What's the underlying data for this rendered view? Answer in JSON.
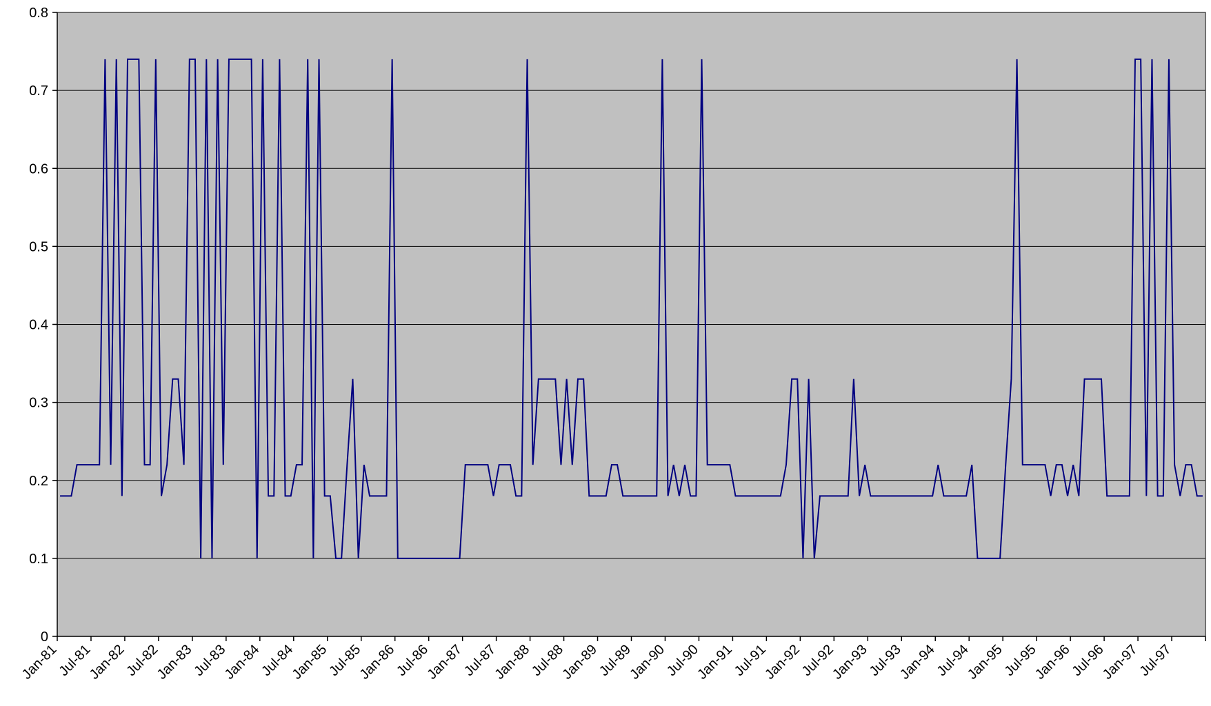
{
  "chart_data": {
    "type": "line",
    "title": "",
    "xlabel": "",
    "ylabel": "",
    "ylim": [
      0,
      0.8
    ],
    "yticks": [
      "0",
      "0.1",
      "0.2",
      "0.3",
      "0.4",
      "0.5",
      "0.6",
      "0.7",
      "0.8"
    ],
    "x_tick_labels": [
      "Jan-81",
      "Jul-81",
      "Jan-82",
      "Jul-82",
      "Jan-83",
      "Jul-83",
      "Jan-84",
      "Jul-84",
      "Jan-85",
      "Jul-85",
      "Jan-86",
      "Jul-86",
      "Jan-87",
      "Jul-87",
      "Jan-88",
      "Jul-88",
      "Jan-89",
      "Jul-89",
      "Jan-90",
      "Jul-90",
      "Jan-91",
      "Jul-91",
      "Jan-92",
      "Jul-92",
      "Jan-93",
      "Jul-93",
      "Jan-94",
      "Jul-94",
      "Jan-95",
      "Jul-95",
      "Jan-96",
      "Jul-96",
      "Jan-97",
      "Jul-97"
    ],
    "x_range": [
      "Jan-81",
      "Dec-97"
    ],
    "grid": "horizontal",
    "legend": "none",
    "colors": {
      "line": "#000080",
      "plot_background": "#C0C0C0",
      "grid": "#000000"
    },
    "series": [
      {
        "x_start": "Jan-81",
        "frequency": "monthly",
        "values": [
          0.18,
          0.18,
          0.18,
          0.22,
          0.22,
          0.22,
          0.22,
          0.22,
          0.74,
          0.22,
          0.74,
          0.18,
          0.74,
          0.74,
          0.74,
          0.22,
          0.22,
          0.74,
          0.18,
          0.22,
          0.33,
          0.33,
          0.22,
          0.74,
          0.74,
          0.1,
          0.74,
          0.1,
          0.74,
          0.22,
          0.74,
          0.74,
          0.74,
          0.74,
          0.74,
          0.1,
          0.74,
          0.18,
          0.18,
          0.74,
          0.18,
          0.18,
          0.22,
          0.22,
          0.74,
          0.1,
          0.74,
          0.18,
          0.18,
          0.1,
          0.1,
          0.22,
          0.33,
          0.1,
          0.22,
          0.18,
          0.18,
          0.18,
          0.18,
          0.74,
          0.1,
          0.1,
          0.1,
          0.1,
          0.1,
          0.1,
          0.1,
          0.1,
          0.1,
          0.1,
          0.1,
          0.1,
          0.22,
          0.22,
          0.22,
          0.22,
          0.22,
          0.18,
          0.22,
          0.22,
          0.22,
          0.18,
          0.18,
          0.74,
          0.22,
          0.33,
          0.33,
          0.33,
          0.33,
          0.22,
          0.33,
          0.22,
          0.33,
          0.33,
          0.18,
          0.18,
          0.18,
          0.18,
          0.22,
          0.22,
          0.18,
          0.18,
          0.18,
          0.18,
          0.18,
          0.18,
          0.18,
          0.74,
          0.18,
          0.22,
          0.18,
          0.22,
          0.18,
          0.18,
          0.74,
          0.22,
          0.22,
          0.22,
          0.22,
          0.22,
          0.18,
          0.18,
          0.18,
          0.18,
          0.18,
          0.18,
          0.18,
          0.18,
          0.18,
          0.22,
          0.33,
          0.33,
          0.1,
          0.33,
          0.1,
          0.18,
          0.18,
          0.18,
          0.18,
          0.18,
          0.18,
          0.33,
          0.18,
          0.22,
          0.18,
          0.18,
          0.18,
          0.18,
          0.18,
          0.18,
          0.18,
          0.18,
          0.18,
          0.18,
          0.18,
          0.18,
          0.22,
          0.18,
          0.18,
          0.18,
          0.18,
          0.18,
          0.22,
          0.1,
          0.1,
          0.1,
          0.1,
          0.1,
          0.22,
          0.33,
          0.74,
          0.22,
          0.22,
          0.22,
          0.22,
          0.22,
          0.18,
          0.22,
          0.22,
          0.18,
          0.22,
          0.18,
          0.33,
          0.33,
          0.33,
          0.33,
          0.18,
          0.18,
          0.18,
          0.18,
          0.18,
          0.74,
          0.74,
          0.18,
          0.74,
          0.18,
          0.18,
          0.74,
          0.22,
          0.18,
          0.22,
          0.22,
          0.18,
          0.18
        ]
      }
    ]
  }
}
